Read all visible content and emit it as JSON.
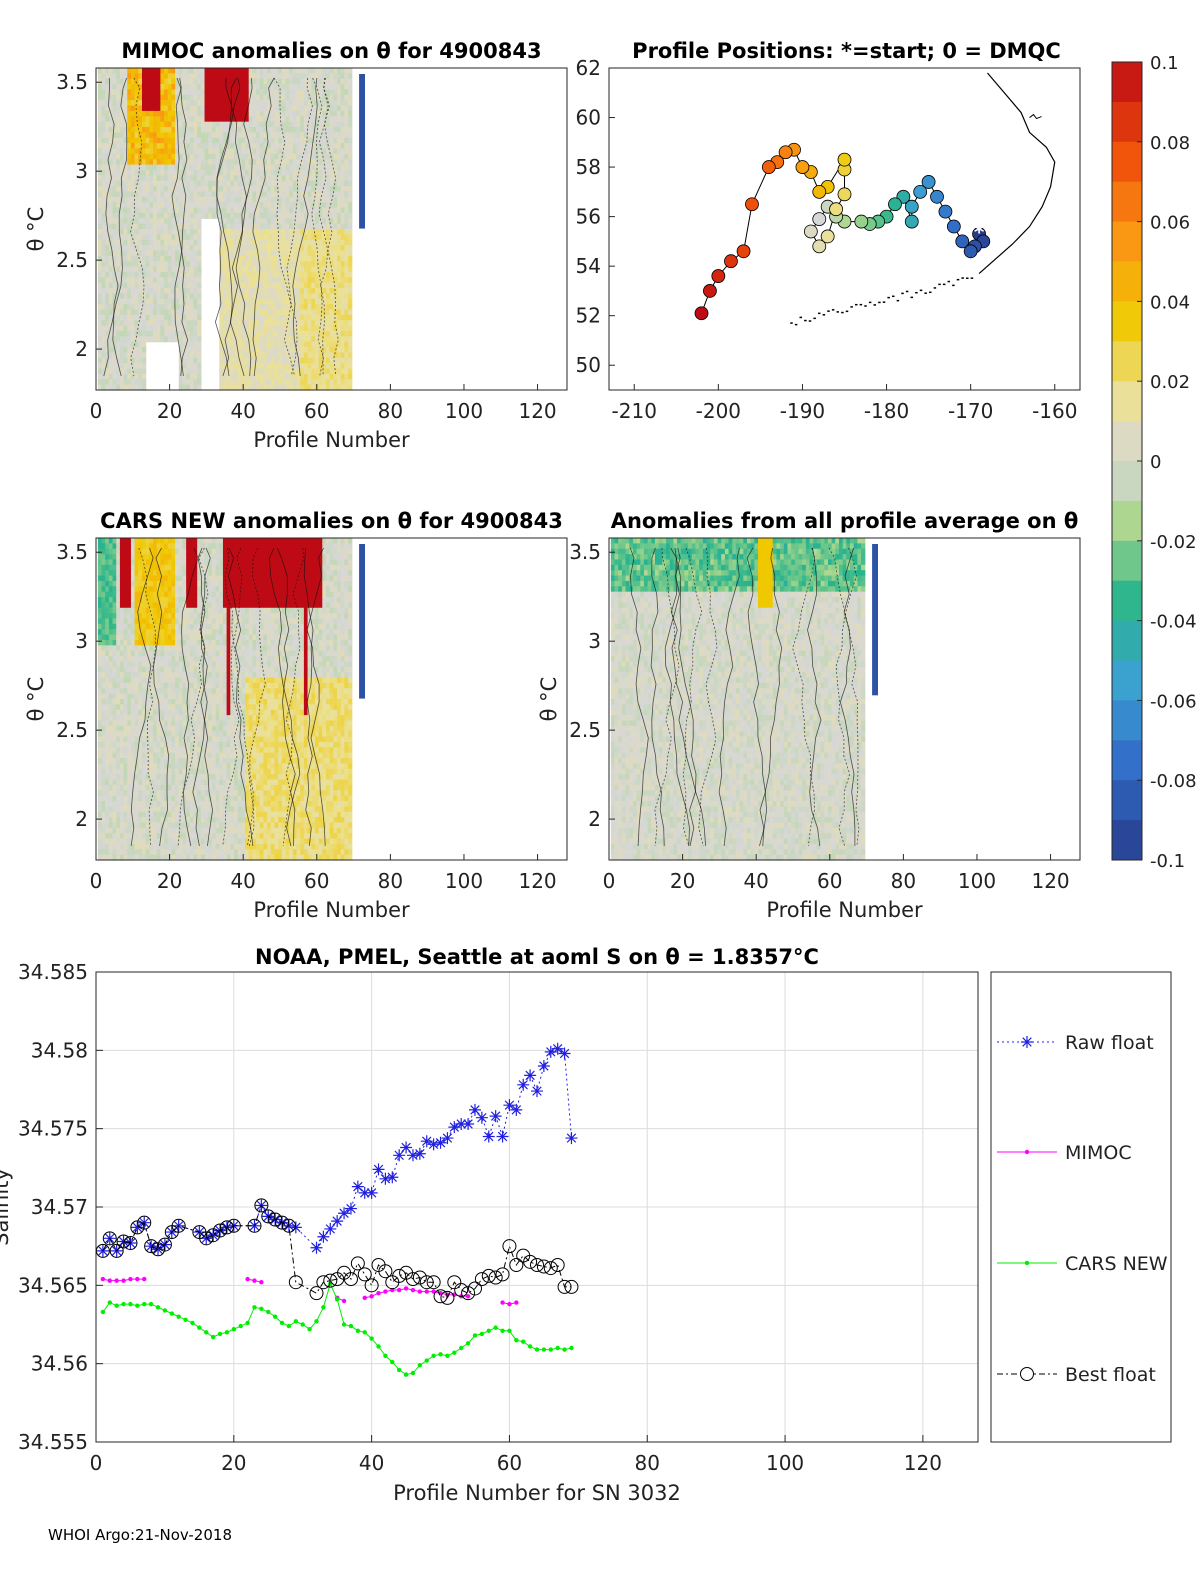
{
  "panels": {
    "mimoc": {
      "title": "MIMOC anomalies on θ  for 4900843",
      "xlabel": "Profile Number",
      "ylabel": "θ °C",
      "xticks": [
        "0",
        "20",
        "40",
        "60",
        "80",
        "100",
        "120"
      ],
      "yticks": [
        "2",
        "2.5",
        "3",
        "3.5"
      ]
    },
    "positions": {
      "title": "Profile Positions: *=start; 0 = DMQC",
      "xticks": [
        "-210",
        "-200",
        "-190",
        "-180",
        "-170",
        "-160"
      ],
      "yticks": [
        "50",
        "52",
        "54",
        "56",
        "58",
        "60",
        "62"
      ]
    },
    "cars": {
      "title": "CARS NEW anomalies on θ for 4900843",
      "xlabel": "Profile Number",
      "ylabel": "θ °C",
      "xticks": [
        "0",
        "20",
        "40",
        "60",
        "80",
        "100",
        "120"
      ],
      "yticks": [
        "2",
        "2.5",
        "3",
        "3.5"
      ]
    },
    "avg": {
      "title": "Anomalies from all profile average on θ",
      "xlabel": "Profile Number",
      "ylabel": "θ °C",
      "xticks": [
        "0",
        "20",
        "40",
        "60",
        "80",
        "100",
        "120"
      ],
      "yticks": [
        "2",
        "2.5",
        "3",
        "3.5"
      ]
    }
  },
  "colorbar": {
    "ticks": [
      "0.1",
      "0.08",
      "0.06",
      "0.04",
      "0.02",
      "0",
      "-0.02",
      "-0.04",
      "-0.06",
      "-0.08",
      "-0.1"
    ]
  },
  "salinity": {
    "title": "NOAA, PMEL, Seattle at aoml S on θ = 1.8357°C",
    "xlabel": "Profile Number for SN 3032",
    "ylabel": "Salinity",
    "xticks": [
      "0",
      "20",
      "40",
      "60",
      "80",
      "100",
      "120"
    ],
    "yticks": [
      "34.555",
      "34.56",
      "34.565",
      "34.57",
      "34.575",
      "34.58",
      "34.585"
    ],
    "legend": [
      "Raw float",
      "MIMOC",
      "CARS NEW",
      "Best float"
    ]
  },
  "chart_data": [
    {
      "type": "heatmap",
      "title": "MIMOC anomalies on θ  for 4900843",
      "xlabel": "Profile Number",
      "ylabel": "θ °C",
      "xlim": [
        0,
        128
      ],
      "ylim": [
        1.77,
        3.58
      ],
      "clim": [
        -0.1,
        0.1
      ]
    },
    {
      "type": "scatter",
      "title": "Profile Positions: *=start; 0 = DMQC",
      "xlim": [
        -213,
        -157
      ],
      "ylim": [
        49,
        62
      ],
      "points": [
        [
          -169,
          55.3
        ],
        [
          -168.5,
          55.0
        ],
        [
          -169.5,
          54.8
        ],
        [
          -170,
          54.6
        ],
        [
          -171,
          55.0
        ],
        [
          -172,
          55.6
        ],
        [
          -173,
          56.2
        ],
        [
          -174,
          56.8
        ],
        [
          -175,
          57.4
        ],
        [
          -176,
          57.0
        ],
        [
          -177,
          56.4
        ],
        [
          -177,
          55.8
        ],
        [
          -178,
          56.8
        ],
        [
          -179,
          56.5
        ],
        [
          -180,
          56.0
        ],
        [
          -181,
          55.8
        ],
        [
          -182,
          55.7
        ],
        [
          -183,
          55.8
        ],
        [
          -185,
          55.8
        ],
        [
          -186,
          56.0
        ],
        [
          -187,
          56.4
        ],
        [
          -188,
          55.9
        ],
        [
          -189,
          55.4
        ],
        [
          -188,
          54.8
        ],
        [
          -187,
          55.2
        ],
        [
          -186,
          56.3
        ],
        [
          -185,
          56.9
        ],
        [
          -185,
          57.9
        ],
        [
          -185,
          58.3
        ],
        [
          -187,
          57.2
        ],
        [
          -188,
          57.0
        ],
        [
          -189,
          57.8
        ],
        [
          -190,
          58.0
        ],
        [
          -191,
          58.7
        ],
        [
          -192,
          58.6
        ],
        [
          -193,
          58.2
        ],
        [
          -194,
          58.0
        ],
        [
          -196,
          56.5
        ],
        [
          -197,
          54.6
        ],
        [
          -198.5,
          54.2
        ],
        [
          -200,
          53.6
        ],
        [
          -201,
          53.0
        ],
        [
          -202,
          52.1
        ]
      ]
    },
    {
      "type": "heatmap",
      "title": "CARS NEW anomalies on θ for 4900843",
      "xlabel": "Profile Number",
      "ylabel": "θ °C",
      "xlim": [
        0,
        128
      ],
      "ylim": [
        1.77,
        3.58
      ],
      "clim": [
        -0.1,
        0.1
      ]
    },
    {
      "type": "heatmap",
      "title": "Anomalies from all profile average on θ",
      "xlabel": "Profile Number",
      "ylabel": "θ °C",
      "xlim": [
        0,
        128
      ],
      "ylim": [
        1.77,
        3.58
      ],
      "clim": [
        -0.1,
        0.1
      ]
    },
    {
      "type": "line",
      "title": "NOAA, PMEL, Seattle at aoml S on θ = 1.8357°C",
      "xlabel": "Profile Number for SN 3032",
      "ylabel": "Salinity",
      "xlim": [
        0,
        128
      ],
      "ylim": [
        34.555,
        34.585
      ],
      "series": [
        {
          "name": "Raw float",
          "x": [
            1,
            2,
            3,
            4,
            5,
            6,
            7,
            8,
            9,
            10,
            11,
            12,
            15,
            16,
            17,
            18,
            19,
            20,
            23,
            24,
            25,
            26,
            27,
            28,
            29,
            32,
            33,
            34,
            35,
            36,
            37,
            38,
            39,
            40,
            41,
            42,
            43,
            44,
            45,
            46,
            47,
            48,
            49,
            50,
            51,
            52,
            53,
            54,
            55,
            56,
            57,
            58,
            59,
            60,
            61,
            62,
            63,
            64,
            65,
            66,
            67,
            68,
            69
          ],
          "y": [
            34.5672,
            34.568,
            34.5672,
            34.5678,
            34.5677,
            34.5687,
            34.569,
            34.5675,
            34.5673,
            34.5676,
            34.5684,
            34.5688,
            34.5684,
            34.568,
            34.5682,
            34.5685,
            34.5687,
            34.5688,
            34.5688,
            34.5701,
            34.5694,
            34.5692,
            34.569,
            34.5688,
            34.5687,
            34.5674,
            34.5681,
            34.5686,
            34.5691,
            34.5696,
            34.5699,
            34.5713,
            34.5709,
            34.5709,
            34.5724,
            34.5718,
            34.5719,
            34.5733,
            34.5738,
            34.5733,
            34.5734,
            34.5742,
            34.574,
            34.5741,
            34.5744,
            34.5751,
            34.5753,
            34.5753,
            34.5762,
            34.5757,
            34.5745,
            34.5758,
            34.5745,
            34.5765,
            34.5762,
            34.5778,
            34.5784,
            34.5774,
            34.579,
            34.5799,
            34.5801,
            34.5798,
            34.5744
          ]
        },
        {
          "name": "MIMOC",
          "x": [
            1,
            2,
            3,
            4,
            5,
            6,
            7,
            22,
            23,
            24,
            35,
            36,
            39,
            40,
            41,
            42,
            43,
            44,
            45,
            46,
            47,
            48,
            49,
            50,
            51,
            52,
            53,
            54,
            59,
            60,
            61
          ],
          "y": [
            34.5654,
            34.5653,
            34.5653,
            34.5653,
            34.5654,
            34.5654,
            34.5654,
            34.5654,
            34.5653,
            34.5652,
            34.5642,
            34.564,
            34.5642,
            34.5643,
            34.5645,
            34.5646,
            34.5647,
            34.5647,
            34.5648,
            34.5647,
            34.5646,
            34.5646,
            34.5646,
            34.5645,
            34.5644,
            34.5644,
            34.5643,
            34.5643,
            34.5639,
            34.5638,
            34.5639
          ]
        },
        {
          "name": "CARS NEW",
          "x": [
            1,
            2,
            3,
            4,
            5,
            6,
            7,
            8,
            9,
            10,
            11,
            12,
            13,
            14,
            15,
            16,
            17,
            18,
            19,
            20,
            21,
            22,
            23,
            24,
            25,
            26,
            27,
            28,
            29,
            30,
            31,
            32,
            33,
            34,
            35,
            36,
            37,
            38,
            39,
            40,
            41,
            42,
            43,
            44,
            45,
            46,
            47,
            48,
            49,
            50,
            51,
            52,
            53,
            54,
            55,
            56,
            57,
            58,
            59,
            60,
            61,
            62,
            63,
            64,
            65,
            66,
            67,
            68,
            69
          ],
          "y": [
            34.5633,
            34.5639,
            34.5637,
            34.5638,
            34.5638,
            34.5637,
            34.5638,
            34.5638,
            34.5636,
            34.5634,
            34.5632,
            34.563,
            34.5628,
            34.5626,
            34.5623,
            34.562,
            34.5617,
            34.5619,
            34.562,
            34.5622,
            34.5624,
            34.5626,
            34.5636,
            34.5635,
            34.5633,
            34.563,
            34.5626,
            34.5624,
            34.5627,
            34.5625,
            34.5622,
            34.5627,
            34.5636,
            34.5651,
            34.5641,
            34.5625,
            34.5624,
            34.5621,
            34.562,
            34.5616,
            34.5611,
            34.5605,
            34.5601,
            34.5596,
            34.5593,
            34.5594,
            34.5599,
            34.5602,
            34.5605,
            34.5606,
            34.5605,
            34.5607,
            34.561,
            34.5613,
            34.5618,
            34.5619,
            34.5621,
            34.5623,
            34.5621,
            34.5621,
            34.5615,
            34.5614,
            34.5611,
            34.5609,
            34.5609,
            34.5609,
            34.561,
            34.5609,
            34.561
          ]
        },
        {
          "name": "Best float",
          "x": [
            1,
            2,
            3,
            4,
            5,
            6,
            7,
            8,
            9,
            10,
            11,
            12,
            15,
            16,
            17,
            18,
            19,
            20,
            23,
            24,
            25,
            26,
            27,
            28,
            29,
            32,
            33,
            34,
            35,
            36,
            37,
            38,
            39,
            40,
            41,
            42,
            43,
            44,
            45,
            46,
            47,
            48,
            49,
            50,
            51,
            52,
            53,
            54,
            55,
            56,
            57,
            58,
            59,
            60,
            61,
            62,
            63,
            64,
            65,
            66,
            67,
            68,
            69
          ],
          "y": [
            34.5672,
            34.568,
            34.5672,
            34.5678,
            34.5677,
            34.5687,
            34.569,
            34.5675,
            34.5673,
            34.5676,
            34.5684,
            34.5688,
            34.5684,
            34.568,
            34.5682,
            34.5685,
            34.5687,
            34.5688,
            34.5688,
            34.5701,
            34.5694,
            34.5692,
            34.569,
            34.5688,
            34.5652,
            34.5645,
            34.5652,
            34.5653,
            34.5654,
            34.5658,
            34.5654,
            34.5664,
            34.5657,
            34.565,
            34.5663,
            34.5659,
            34.5652,
            34.5656,
            34.5658,
            34.5654,
            34.5655,
            34.5652,
            34.5652,
            34.5643,
            34.5642,
            34.5652,
            34.5647,
            34.5645,
            34.5648,
            34.5654,
            34.5656,
            34.5655,
            34.5657,
            34.5675,
            34.5663,
            34.5669,
            34.5665,
            34.5663,
            34.5662,
            34.5661,
            34.5663,
            34.5649,
            34.5649
          ]
        }
      ]
    }
  ],
  "footer": "WHOI Argo:21-Nov-2018"
}
